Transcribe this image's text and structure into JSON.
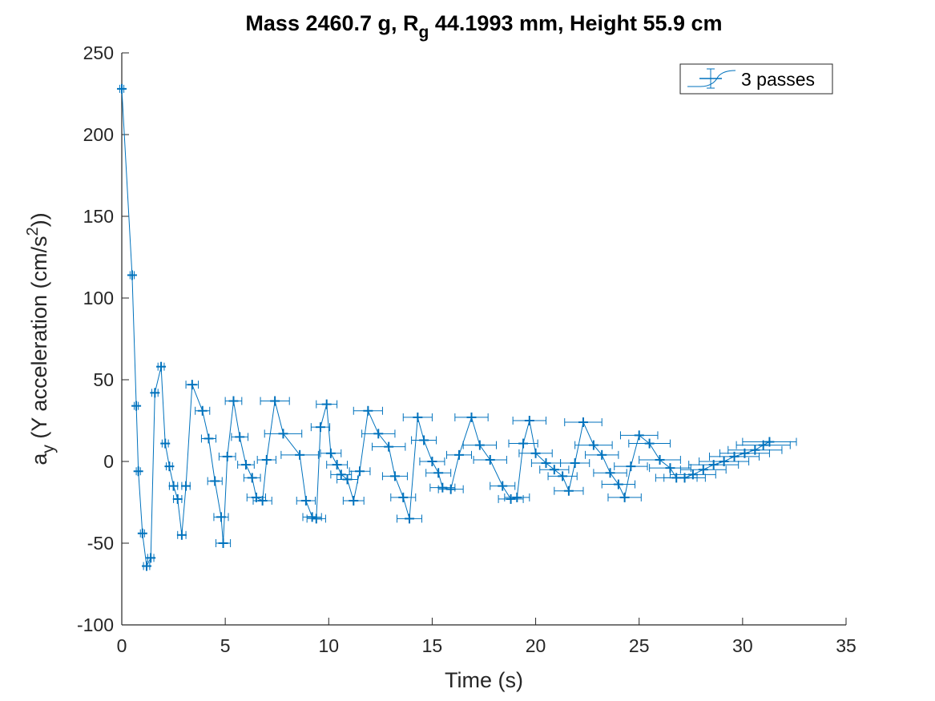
{
  "chart_data": {
    "type": "line",
    "title": {
      "prefix": "Mass 2460.7 g, R",
      "sub": "g",
      "suffix": " 44.1993 mm,  Height 55.9 cm"
    },
    "xlabel": "Time (s)",
    "ylabel": {
      "a": "a",
      "sub": "y",
      "mid": " (Y acceleration (cm/s",
      "sup": "2",
      "end": "))"
    },
    "xlim": [
      0,
      35
    ],
    "ylim": [
      -100,
      250
    ],
    "xticks": [
      0,
      5,
      10,
      15,
      20,
      25,
      30,
      35
    ],
    "yticks": [
      -100,
      -50,
      0,
      50,
      100,
      150,
      200,
      250
    ],
    "grid": false,
    "legend_position": "top-right",
    "line_color": "#0072BD",
    "series": [
      {
        "name": "3 passes",
        "points": [
          {
            "x": 0.0,
            "y": 228,
            "xerr": 0.1
          },
          {
            "x": 0.5,
            "y": 114,
            "xerr": 0.1
          },
          {
            "x": 0.7,
            "y": 34,
            "xerr": 0.1
          },
          {
            "x": 0.8,
            "y": -6,
            "xerr": 0.1
          },
          {
            "x": 1.0,
            "y": -44,
            "xerr": 0.1
          },
          {
            "x": 1.2,
            "y": -64,
            "xerr": 0.15
          },
          {
            "x": 1.4,
            "y": -59,
            "xerr": 0.15
          },
          {
            "x": 1.6,
            "y": 42,
            "xerr": 0.15
          },
          {
            "x": 1.9,
            "y": 58,
            "xerr": 0.15
          },
          {
            "x": 2.1,
            "y": 11,
            "xerr": 0.15
          },
          {
            "x": 2.3,
            "y": -3,
            "xerr": 0.15
          },
          {
            "x": 2.5,
            "y": -15,
            "xerr": 0.2
          },
          {
            "x": 2.7,
            "y": -23,
            "xerr": 0.2
          },
          {
            "x": 2.9,
            "y": -45,
            "xerr": 0.2
          },
          {
            "x": 3.1,
            "y": -15,
            "xerr": 0.2
          },
          {
            "x": 3.4,
            "y": 47,
            "xerr": 0.3
          },
          {
            "x": 3.9,
            "y": 31,
            "xerr": 0.35
          },
          {
            "x": 4.2,
            "y": 14,
            "xerr": 0.35
          },
          {
            "x": 4.5,
            "y": -12,
            "xerr": 0.35
          },
          {
            "x": 4.8,
            "y": -34,
            "xerr": 0.35
          },
          {
            "x": 4.9,
            "y": -50,
            "xerr": 0.35
          },
          {
            "x": 5.1,
            "y": 3,
            "xerr": 0.4
          },
          {
            "x": 5.4,
            "y": 37,
            "xerr": 0.4
          },
          {
            "x": 5.7,
            "y": 15,
            "xerr": 0.4
          },
          {
            "x": 6.0,
            "y": -2,
            "xerr": 0.4
          },
          {
            "x": 6.3,
            "y": -10,
            "xerr": 0.4
          },
          {
            "x": 6.5,
            "y": -22,
            "xerr": 0.45
          },
          {
            "x": 6.8,
            "y": -24,
            "xerr": 0.45
          },
          {
            "x": 7.0,
            "y": 1,
            "xerr": 0.45
          },
          {
            "x": 7.4,
            "y": 37,
            "xerr": 0.7
          },
          {
            "x": 7.8,
            "y": 17,
            "xerr": 0.9
          },
          {
            "x": 8.6,
            "y": 4,
            "xerr": 0.9
          },
          {
            "x": 8.9,
            "y": -24,
            "xerr": 0.45
          },
          {
            "x": 9.2,
            "y": -34,
            "xerr": 0.45
          },
          {
            "x": 9.4,
            "y": -35,
            "xerr": 0.45
          },
          {
            "x": 9.6,
            "y": 21,
            "xerr": 0.45
          },
          {
            "x": 9.9,
            "y": 35,
            "xerr": 0.5
          },
          {
            "x": 10.1,
            "y": 5,
            "xerr": 0.5
          },
          {
            "x": 10.4,
            "y": -2,
            "xerr": 0.5
          },
          {
            "x": 10.6,
            "y": -8,
            "xerr": 0.5
          },
          {
            "x": 10.9,
            "y": -11,
            "xerr": 0.5
          },
          {
            "x": 11.2,
            "y": -24,
            "xerr": 0.5
          },
          {
            "x": 11.5,
            "y": -6,
            "xerr": 0.5
          },
          {
            "x": 11.9,
            "y": 31,
            "xerr": 0.7
          },
          {
            "x": 12.4,
            "y": 17,
            "xerr": 0.8
          },
          {
            "x": 12.9,
            "y": 9,
            "xerr": 0.8
          },
          {
            "x": 13.2,
            "y": -9,
            "xerr": 0.6
          },
          {
            "x": 13.6,
            "y": -22,
            "xerr": 0.6
          },
          {
            "x": 13.9,
            "y": -35,
            "xerr": 0.6
          },
          {
            "x": 14.3,
            "y": 27,
            "xerr": 0.7
          },
          {
            "x": 14.6,
            "y": 13,
            "xerr": 0.6
          },
          {
            "x": 15.0,
            "y": 0,
            "xerr": 0.6
          },
          {
            "x": 15.3,
            "y": -7,
            "xerr": 0.6
          },
          {
            "x": 15.5,
            "y": -16,
            "xerr": 0.6
          },
          {
            "x": 15.9,
            "y": -17,
            "xerr": 0.6
          },
          {
            "x": 16.3,
            "y": 4,
            "xerr": 0.6
          },
          {
            "x": 16.9,
            "y": 27,
            "xerr": 0.8
          },
          {
            "x": 17.3,
            "y": 10,
            "xerr": 0.8
          },
          {
            "x": 17.8,
            "y": 1,
            "xerr": 0.8
          },
          {
            "x": 18.4,
            "y": -15,
            "xerr": 0.6
          },
          {
            "x": 18.8,
            "y": -23,
            "xerr": 0.6
          },
          {
            "x": 19.1,
            "y": -22,
            "xerr": 0.6
          },
          {
            "x": 19.4,
            "y": 11,
            "xerr": 0.7
          },
          {
            "x": 19.7,
            "y": 25,
            "xerr": 0.8
          },
          {
            "x": 20.0,
            "y": 5,
            "xerr": 0.8
          },
          {
            "x": 20.5,
            "y": -1,
            "xerr": 0.7
          },
          {
            "x": 20.9,
            "y": -5,
            "xerr": 0.7
          },
          {
            "x": 21.3,
            "y": -9,
            "xerr": 0.7
          },
          {
            "x": 21.6,
            "y": -18,
            "xerr": 0.7
          },
          {
            "x": 21.9,
            "y": -1,
            "xerr": 0.7
          },
          {
            "x": 22.3,
            "y": 24,
            "xerr": 0.9
          },
          {
            "x": 22.8,
            "y": 10,
            "xerr": 0.9
          },
          {
            "x": 23.2,
            "y": 4,
            "xerr": 0.8
          },
          {
            "x": 23.6,
            "y": -7,
            "xerr": 0.8
          },
          {
            "x": 24.0,
            "y": -14,
            "xerr": 0.8
          },
          {
            "x": 24.3,
            "y": -22,
            "xerr": 0.8
          },
          {
            "x": 24.6,
            "y": -3,
            "xerr": 0.8
          },
          {
            "x": 25.0,
            "y": 16,
            "xerr": 0.9
          },
          {
            "x": 25.5,
            "y": 11,
            "xerr": 1.0
          },
          {
            "x": 26.0,
            "y": 1,
            "xerr": 1.0
          },
          {
            "x": 26.5,
            "y": -4,
            "xerr": 1.0
          },
          {
            "x": 26.8,
            "y": -10,
            "xerr": 1.0
          },
          {
            "x": 27.2,
            "y": -10,
            "xerr": 1.0
          },
          {
            "x": 27.6,
            "y": -8,
            "xerr": 1.1
          },
          {
            "x": 28.1,
            "y": -5,
            "xerr": 1.1
          },
          {
            "x": 28.6,
            "y": -2,
            "xerr": 1.2
          },
          {
            "x": 29.1,
            "y": 0,
            "xerr": 1.2
          },
          {
            "x": 29.6,
            "y": 3,
            "xerr": 1.2
          },
          {
            "x": 30.1,
            "y": 5,
            "xerr": 1.2
          },
          {
            "x": 30.6,
            "y": 7,
            "xerr": 1.3
          },
          {
            "x": 31.0,
            "y": 10,
            "xerr": 1.3
          },
          {
            "x": 31.3,
            "y": 12,
            "xerr": 1.3
          }
        ]
      }
    ]
  }
}
